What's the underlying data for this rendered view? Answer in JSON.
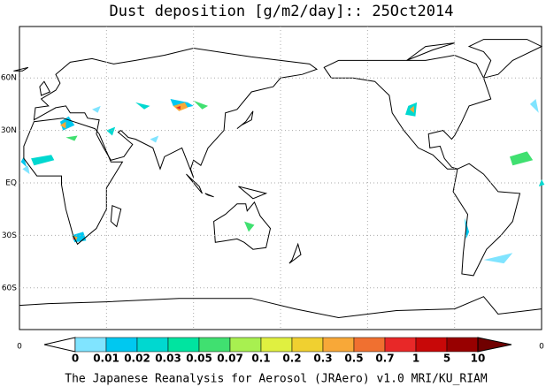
{
  "header": {
    "title": "Dust deposition [g/m2/day]:: 25Oct2014"
  },
  "map": {
    "lat_labels": [
      "60N",
      "30N",
      "EQ",
      "30S",
      "60S"
    ],
    "corner_left": "0",
    "corner_right": "0"
  },
  "colorbar": {
    "labels": [
      "0",
      "0.01",
      "0.02",
      "0.03",
      "0.05",
      "0.07",
      "0.1",
      "0.2",
      "0.3",
      "0.5",
      "0.7",
      "1",
      "5",
      "10"
    ],
    "colors": [
      "#ffffff",
      "#80e4ff",
      "#00c8f0",
      "#00d8d0",
      "#00e4a0",
      "#40e070",
      "#a8f050",
      "#e0f040",
      "#f0d030",
      "#f8a838",
      "#f07030",
      "#e82828",
      "#c80808",
      "#980000",
      "#700000"
    ]
  },
  "footer": {
    "text": "The Japanese Reanalysis for Aerosol (JRAero) v1.0 MRI/KU_RIAM"
  }
}
